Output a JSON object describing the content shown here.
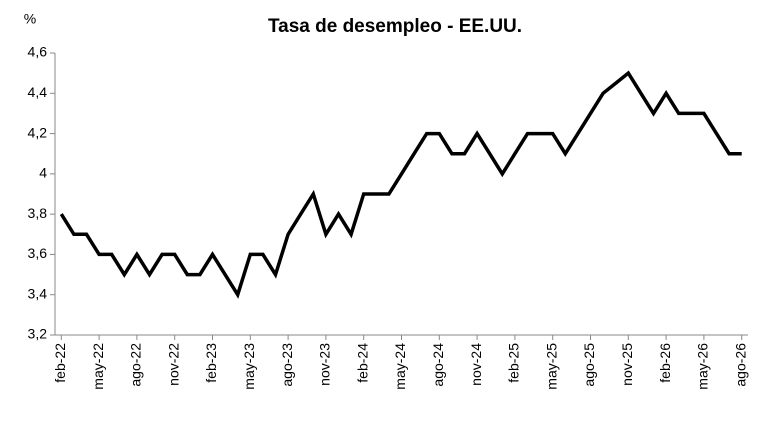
{
  "chart_data": {
    "type": "line",
    "title": "Tasa de desempleo - EE.UU.",
    "ylabel": "%",
    "categories": [
      "feb-22",
      null,
      null,
      "may-22",
      null,
      null,
      "ago-22",
      null,
      null,
      "nov-22",
      null,
      null,
      "feb-23",
      null,
      null,
      "may-23",
      null,
      null,
      "ago-23",
      null,
      null,
      "nov-23",
      null,
      null,
      "feb-24",
      null,
      null,
      "may-24",
      null,
      null,
      "ago-24",
      null,
      null,
      "nov-24",
      null,
      null,
      "feb-25",
      null,
      null,
      "may-25",
      null,
      null,
      "ago-25",
      null,
      null,
      "nov-25",
      null,
      null,
      "feb-26",
      null,
      null,
      "may-26",
      null,
      null,
      "ago-26"
    ],
    "values": [
      3.8,
      3.7,
      3.7,
      3.6,
      3.6,
      3.5,
      3.6,
      3.5,
      3.6,
      3.6,
      3.5,
      3.5,
      3.6,
      3.5,
      3.4,
      3.6,
      3.6,
      3.5,
      3.7,
      3.8,
      3.9,
      3.7,
      3.8,
      3.7,
      3.9,
      3.9,
      3.9,
      4.0,
      4.1,
      4.2,
      4.2,
      4.1,
      4.1,
      4.2,
      4.1,
      4.0,
      4.1,
      4.2,
      4.2,
      4.2,
      4.1,
      4.2,
      4.3,
      4.4,
      4.45,
      4.5,
      4.4,
      4.3,
      4.4,
      4.3,
      4.3,
      4.3,
      4.2,
      4.1,
      4.1
    ],
    "color": "#000000",
    "ylim": [
      3.2,
      4.6
    ],
    "yticks": [
      {
        "value": 3.2,
        "label": "3,2"
      },
      {
        "value": 3.4,
        "label": "3,4"
      },
      {
        "value": 3.6,
        "label": "3,6"
      },
      {
        "value": 3.8,
        "label": "3,8"
      },
      4,
      {
        "value": 4.2,
        "label": "4,2"
      },
      {
        "value": 4.4,
        "label": "4,4"
      },
      {
        "value": 4.6,
        "label": "4,6"
      }
    ],
    "grid": false
  }
}
